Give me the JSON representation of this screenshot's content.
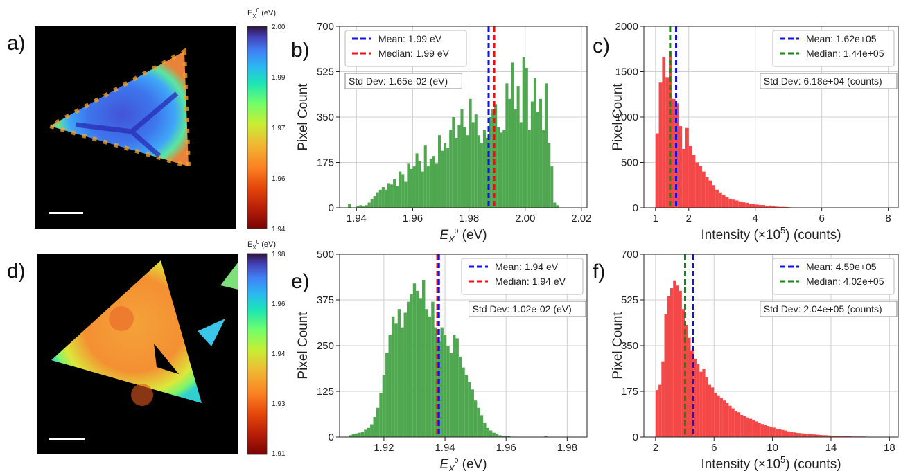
{
  "panels": {
    "a": "a)",
    "b": "b)",
    "c": "c)",
    "d": "d)",
    "e": "e)",
    "f": "f)"
  },
  "colorbars": [
    {
      "title": "E",
      "title_sub": "X",
      "title_sup": "0",
      "title_unit": " (eV)",
      "ticks": [
        "2.00",
        "1.99",
        "1.97",
        "1.96",
        "1.94"
      ]
    },
    {
      "title": "E",
      "title_sub": "X",
      "title_sup": "0",
      "title_unit": " (eV)",
      "ticks": [
        "1.98",
        "1.96",
        "1.94",
        "1.93",
        "1.91"
      ]
    }
  ],
  "colors": {
    "hist_green": "#4fa84f",
    "hist_red": "#f44848",
    "mean": "#1010ee",
    "median_red": "#ee1010",
    "median_green": "#108a10"
  },
  "chart_data": [
    {
      "type": "bar",
      "id": "b",
      "xlabel_main": "E",
      "xlabel_sub": "X",
      "xlabel_sup": "0",
      "xlabel_unit": " (eV)",
      "ylabel": "Pixel Count",
      "xlim": [
        1.934,
        2.022
      ],
      "ylim": [
        0,
        700
      ],
      "xticks": [
        1.94,
        1.96,
        1.98,
        2.0,
        2.02
      ],
      "xtick_labels": [
        "1.94",
        "1.96",
        "1.98",
        "2.00",
        "2.02"
      ],
      "yticks": [
        0,
        175,
        350,
        525,
        700
      ],
      "ytick_labels": [
        "0",
        "175",
        "350",
        "525",
        "700"
      ],
      "grid": true,
      "legend_position": "top-left",
      "bin_start": 1.937,
      "bin_width": 0.001,
      "values": [
        15,
        0,
        0,
        8,
        10,
        5,
        10,
        20,
        35,
        45,
        60,
        70,
        80,
        70,
        95,
        90,
        110,
        85,
        140,
        130,
        100,
        170,
        150,
        160,
        210,
        180,
        140,
        240,
        160,
        190,
        200,
        170,
        280,
        220,
        250,
        230,
        300,
        350,
        270,
        320,
        380,
        310,
        280,
        420,
        330,
        360,
        280,
        250,
        300,
        270,
        350,
        380,
        400,
        310,
        290,
        300,
        480,
        420,
        560,
        380,
        470,
        330,
        580,
        540,
        300,
        410,
        500,
        370,
        420,
        300,
        480,
        250,
        160,
        20,
        10
      ],
      "mean": 1.987,
      "median": 1.989,
      "legend": [
        {
          "label": "Mean: 1.99 eV",
          "color": "#1010ee"
        },
        {
          "label": "Median: 1.99 eV",
          "color": "#ee1010"
        }
      ],
      "std_text": "Std Dev: 1.65e-02 (eV)"
    },
    {
      "type": "bar",
      "id": "c",
      "xlabel": "Intensity (×10",
      "xlabel_sup": "5",
      "xlabel_unit": ") (counts)",
      "ylabel": "Pixel Count",
      "xlim": [
        0.65,
        8.3
      ],
      "ylim": [
        0,
        2000
      ],
      "xticks": [
        1,
        2,
        4,
        6,
        8
      ],
      "xtick_labels": [
        "1",
        "2",
        "4",
        "6",
        "8"
      ],
      "yticks": [
        0,
        500,
        1000,
        1500,
        2000
      ],
      "ytick_labels": [
        "0",
        "500",
        "1000",
        "1500",
        "2000"
      ],
      "grid": true,
      "legend_position": "top-right",
      "bin_start": 1.0,
      "bin_width": 0.1,
      "values": [
        820,
        1380,
        1660,
        1440,
        1730,
        1200,
        1150,
        900,
        650,
        880,
        680,
        580,
        500,
        460,
        400,
        340,
        300,
        250,
        200,
        170,
        140,
        120,
        100,
        90,
        80,
        70,
        60,
        55,
        45,
        40,
        35,
        30,
        30,
        20,
        25,
        15,
        12,
        10,
        10,
        8,
        5,
        4,
        3,
        2,
        2,
        2,
        1,
        1,
        1,
        1,
        0,
        1,
        0,
        0,
        0,
        0,
        1,
        0,
        0,
        1,
        0,
        0,
        0,
        0,
        0,
        0,
        0,
        0,
        0,
        0
      ],
      "mean": 1.62,
      "median": 1.44,
      "legend": [
        {
          "label": "Mean: 1.62e+05",
          "color": "#1010ee"
        },
        {
          "label": "Median: 1.44e+05",
          "color": "#108a10"
        }
      ],
      "std_text": "Std Dev: 6.18e+04 (counts)"
    },
    {
      "type": "bar",
      "id": "e",
      "xlabel_main": "E",
      "xlabel_sub": "X",
      "xlabel_sup": "0",
      "xlabel_unit": " (eV)",
      "ylabel": "Pixel Count",
      "xlim": [
        1.9055,
        1.9865
      ],
      "ylim": [
        0,
        500
      ],
      "xticks": [
        1.92,
        1.94,
        1.96,
        1.98
      ],
      "xtick_labels": [
        "1.92",
        "1.94",
        "1.96",
        "1.98"
      ],
      "yticks": [
        0,
        125,
        250,
        375,
        500
      ],
      "ytick_labels": [
        "0",
        "125",
        "250",
        "375",
        "500"
      ],
      "grid": true,
      "legend_position": "top-right",
      "bin_start": 1.9085,
      "bin_width": 0.001,
      "values": [
        5,
        8,
        10,
        12,
        15,
        20,
        25,
        35,
        55,
        80,
        120,
        170,
        230,
        280,
        330,
        310,
        350,
        300,
        340,
        370,
        390,
        420,
        400,
        380,
        430,
        350,
        330,
        370,
        300,
        260,
        300,
        280,
        250,
        230,
        280,
        270,
        220,
        190,
        170,
        150,
        130,
        100,
        80,
        60,
        40,
        25,
        18,
        12,
        8,
        5,
        3,
        2,
        2,
        1,
        1,
        0,
        0,
        0,
        0,
        0,
        0,
        0,
        0,
        0,
        2,
        0,
        0,
        0,
        0,
        0,
        0,
        0,
        0,
        0,
        0
      ],
      "mean": 1.938,
      "median": 1.9375,
      "legend": [
        {
          "label": "Mean: 1.94 eV",
          "color": "#1010ee"
        },
        {
          "label": "Median: 1.94 eV",
          "color": "#ee1010"
        }
      ],
      "std_text": "Std Dev: 1.02e-02 (eV)"
    },
    {
      "type": "bar",
      "id": "f",
      "xlabel": "Intensity (×10",
      "xlabel_sup": "5",
      "xlabel_unit": ") (counts)",
      "ylabel": "Pixel Count",
      "xlim": [
        1.2,
        18.6
      ],
      "ylim": [
        0,
        700
      ],
      "xticks": [
        2,
        6,
        10,
        14,
        18
      ],
      "xtick_labels": [
        "2",
        "6",
        "10",
        "14",
        "18"
      ],
      "yticks": [
        0,
        175,
        350,
        525,
        700
      ],
      "ytick_labels": [
        "0",
        "175",
        "350",
        "525",
        "700"
      ],
      "grid": true,
      "legend_position": "top-right",
      "bin_start": 2.0,
      "bin_width": 0.2,
      "values": [
        180,
        200,
        290,
        470,
        540,
        570,
        600,
        580,
        560,
        490,
        430,
        380,
        330,
        300,
        280,
        250,
        260,
        230,
        200,
        190,
        170,
        160,
        150,
        140,
        130,
        120,
        110,
        100,
        95,
        85,
        80,
        75,
        70,
        65,
        60,
        55,
        50,
        45,
        42,
        40,
        36,
        32,
        30,
        27,
        25,
        22,
        20,
        18,
        16,
        15,
        14,
        13,
        12,
        11,
        10,
        9,
        8,
        7,
        7,
        6,
        5,
        5,
        4,
        4,
        3,
        3,
        3,
        2,
        2,
        2,
        2,
        2,
        1,
        1,
        1,
        1,
        1,
        1,
        1,
        1
      ],
      "mean": 4.59,
      "median": 4.02,
      "legend": [
        {
          "label": "Mean: 4.59e+05",
          "color": "#1010ee"
        },
        {
          "label": "Median: 4.02e+05",
          "color": "#108a10"
        }
      ],
      "std_text": "Std Dev: 2.04e+05 (counts)"
    }
  ]
}
